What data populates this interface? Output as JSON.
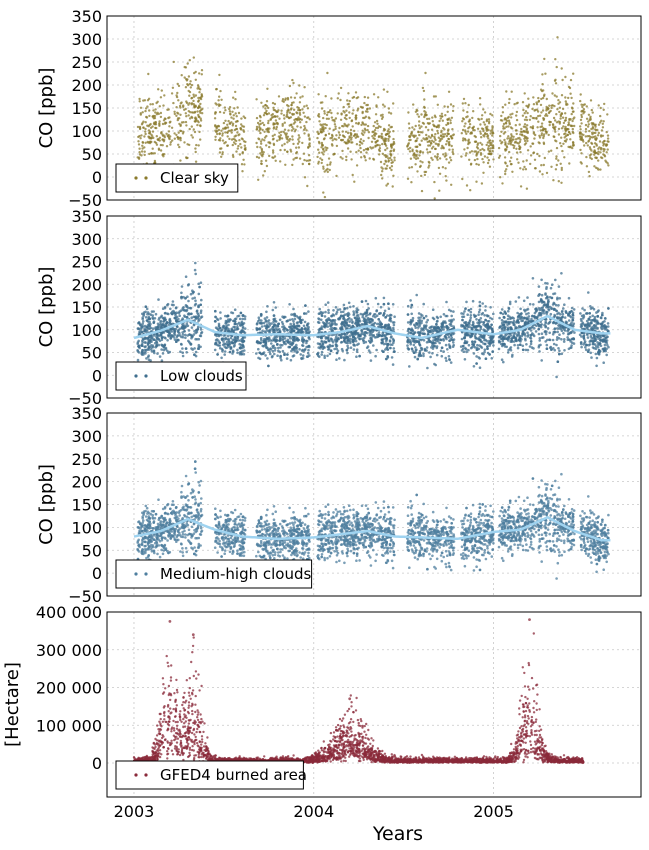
{
  "xlabel": "Years",
  "x_ticks": [
    "2003",
    "2004",
    "2005"
  ],
  "colors": {
    "clear_sky": "#8a7a2c",
    "low_clouds": "#3f6f8f",
    "medium_high": "#4f7f9f",
    "gfed": "#8a2a3a",
    "smooth": "#9fd3f0"
  },
  "chart_data": [
    {
      "type": "scatter",
      "ylabel": "CO [ppb]",
      "ylim": [
        -50,
        350
      ],
      "yticks": [
        "350",
        "300",
        "250",
        "200",
        "150",
        "100",
        "50",
        "0",
        "−50"
      ],
      "grid": true,
      "legend_position": "lower-left",
      "series": [
        {
          "name": "Clear sky",
          "color": "#8a7a2c"
        }
      ],
      "x": [
        2003.05,
        2003.1,
        2003.18,
        2003.3,
        2003.5,
        2003.65,
        2003.8,
        2003.9,
        2004.0,
        2004.15,
        2004.3,
        2004.45,
        2004.6,
        2004.8,
        2004.95,
        2005.05,
        2005.2,
        2005.35,
        2005.5,
        2005.6
      ],
      "y": [
        85,
        100,
        95,
        150,
        110,
        90,
        100,
        120,
        90,
        95,
        110,
        60,
        85,
        90,
        80,
        90,
        95,
        125,
        100,
        70
      ]
    },
    {
      "type": "scatter",
      "ylabel": "CO [ppb]",
      "ylim": [
        -50,
        350
      ],
      "yticks": [
        "350",
        "300",
        "250",
        "200",
        "150",
        "100",
        "50",
        "0",
        "−50"
      ],
      "grid": true,
      "legend_position": "lower-left",
      "series": [
        {
          "name": "Low clouds",
          "color": "#3f6f8f"
        }
      ],
      "smooth_x": [
        2003.0,
        2003.15,
        2003.3,
        2003.45,
        2003.6,
        2003.8,
        2004.0,
        2004.15,
        2004.3,
        2004.45,
        2004.6,
        2004.8,
        2005.0,
        2005.15,
        2005.3,
        2005.45,
        2005.6
      ],
      "smooth_y": [
        82,
        98,
        122,
        95,
        88,
        90,
        88,
        95,
        108,
        92,
        82,
        100,
        90,
        100,
        130,
        100,
        92
      ]
    },
    {
      "type": "scatter",
      "ylabel": "CO [ppb]",
      "ylim": [
        -50,
        350
      ],
      "yticks": [
        "350",
        "300",
        "250",
        "200",
        "150",
        "100",
        "50",
        "0",
        "−50"
      ],
      "grid": true,
      "legend_position": "lower-left",
      "series": [
        {
          "name": "Medium-high clouds",
          "color": "#4f7f9f"
        }
      ],
      "smooth_x": [
        2003.0,
        2003.15,
        2003.3,
        2003.45,
        2003.6,
        2003.8,
        2004.0,
        2004.15,
        2004.3,
        2004.45,
        2004.6,
        2004.8,
        2005.0,
        2005.15,
        2005.3,
        2005.45,
        2005.6
      ],
      "smooth_y": [
        80,
        92,
        118,
        95,
        80,
        75,
        78,
        85,
        92,
        80,
        78,
        75,
        90,
        95,
        122,
        92,
        72
      ]
    },
    {
      "type": "scatter",
      "ylabel": "[Hectare]",
      "ylim": [
        -90000,
        400000
      ],
      "yticks": [
        "400 000",
        "300 000",
        "200 000",
        "100 000",
        "0"
      ],
      "grid": true,
      "legend_position": "lower-left",
      "series": [
        {
          "name": "GFED4 burned area",
          "color": "#8a2a3a"
        }
      ],
      "peaks_x": [
        2003.2,
        2003.33,
        2004.2,
        2005.2
      ],
      "peaks_y": [
        375000,
        340000,
        170000,
        380000
      ]
    }
  ]
}
